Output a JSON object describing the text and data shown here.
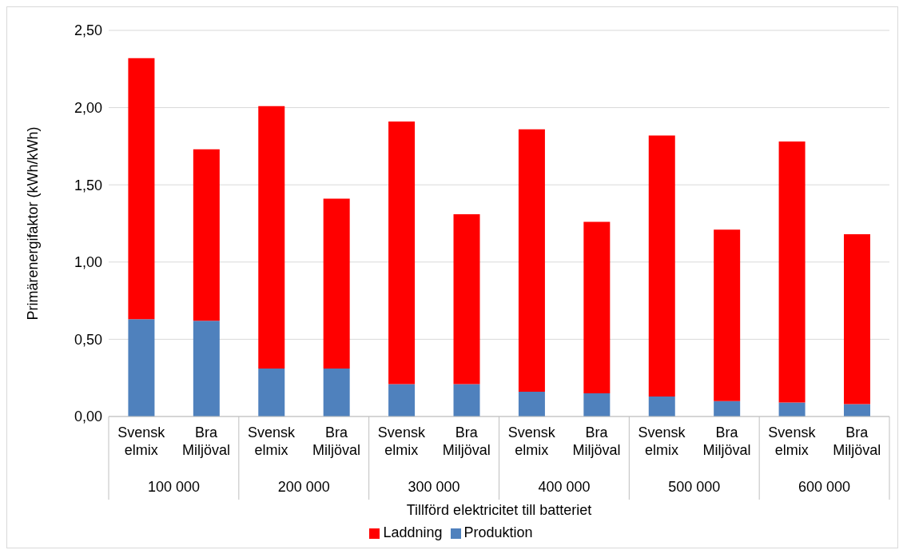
{
  "chart_data": {
    "type": "bar",
    "stacked": true,
    "xlabel": "Tillförd elektricitet till batteriet",
    "ylabel": "Primärenergifaktor (kWh/kWh)",
    "categories": [
      "Svensk elmix",
      "Bra Miljöval",
      "Svensk elmix",
      "Bra Miljöval",
      "Svensk elmix",
      "Bra Miljöval",
      "Svensk elmix",
      "Bra Miljöval",
      "Svensk elmix",
      "Bra Miljöval",
      "Svensk elmix",
      "Bra Miljöval"
    ],
    "annotations": [
      "100 000",
      "200 000",
      "300 000",
      "400 000",
      "500 000",
      "600 000"
    ],
    "series": [
      {
        "name": "Produktion",
        "color": "#4f81bd",
        "values": [
          0.63,
          0.62,
          0.31,
          0.31,
          0.21,
          0.21,
          0.16,
          0.15,
          0.13,
          0.1,
          0.09,
          0.08
        ]
      },
      {
        "name": "Laddning",
        "color": "#ff0000",
        "values": [
          1.69,
          1.11,
          1.7,
          1.1,
          1.7,
          1.1,
          1.7,
          1.11,
          1.69,
          1.11,
          1.69,
          1.1
        ]
      }
    ],
    "ylim": [
      0,
      2.5
    ],
    "yticks": [
      {
        "value": 0,
        "label": "0,00"
      },
      {
        "value": 0.5,
        "label": "0,50"
      },
      {
        "value": 1,
        "label": "1,00"
      },
      {
        "value": 1.5,
        "label": "1,50"
      },
      {
        "value": 2,
        "label": "2,00"
      },
      {
        "value": 2.5,
        "label": "2,50"
      }
    ],
    "grid": "y",
    "legend": "bottom"
  }
}
